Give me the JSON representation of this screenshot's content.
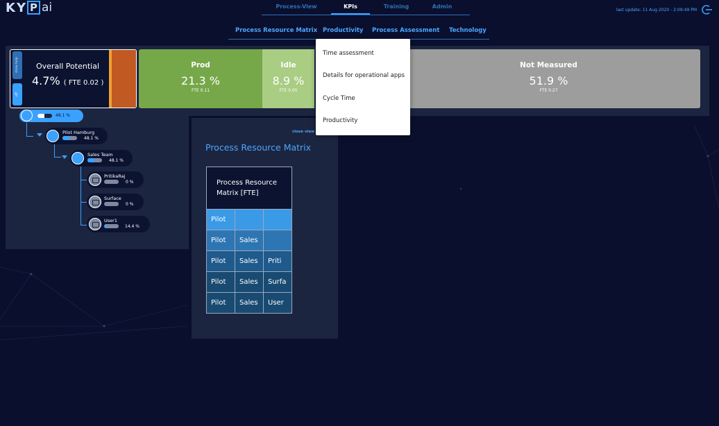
{
  "logo": {
    "k": "K",
    "y": "Y",
    "p": "P",
    "ai": "ai"
  },
  "top_nav": {
    "tabs": [
      {
        "label": "Process-View",
        "active": false
      },
      {
        "label": "KPIs",
        "active": true
      },
      {
        "label": "Training",
        "active": false
      },
      {
        "label": "Admin",
        "active": false
      }
    ]
  },
  "sub_nav": {
    "items": [
      "Process Resource Matrix",
      "Productivity",
      "Process Assessment",
      "Technology"
    ]
  },
  "last_update": "last update: 11 Aug 2020 - 2:09:49 PM",
  "icons": {
    "logout": "logout-icon",
    "close_view": "close-view-icon",
    "team": "team-icon",
    "computer": "computer-icon",
    "expand": "expand-arrow-icon"
  },
  "colors": {
    "background": "#0a0f2e",
    "accent": "#3aa1ff",
    "prod": "#76a84a",
    "idle": "#a9cd83",
    "not_measured": "#9d9d9d",
    "orange": "#c05a22"
  },
  "overall": {
    "show_help": "show help",
    "toggle_label": "off",
    "title": "Overall Potential",
    "value": "4.7%",
    "fte": "( FTE 0.02 )"
  },
  "kpis": {
    "prod": {
      "title": "Prod",
      "value": "21.3 %",
      "fte": "FTE 0.11"
    },
    "idle": {
      "title": "Idle",
      "value": "8.9 %",
      "fte": "FTE 0.05"
    },
    "not_measured": {
      "title": "Not Measured",
      "value": "51.9 %",
      "fte": "FTE 0.27"
    }
  },
  "dropdown": {
    "options": [
      "Time assessment",
      "Details for operational apps",
      "Cycle Time",
      "Productivity"
    ]
  },
  "tree": {
    "root": {
      "pct": "48.1 %",
      "fill": 0.481
    },
    "hamburg": {
      "label": "Pilot Hamburg",
      "pct": "48.1 %",
      "fill": 0.481
    },
    "sales_team": {
      "label": "Sales Team",
      "pct": "48.1 %",
      "fill": 0.481
    },
    "users": [
      {
        "label": "PritikaRaj",
        "pct": "0 %",
        "fill": 0.0
      },
      {
        "label": "Surface",
        "pct": "0 %",
        "fill": 0.0
      },
      {
        "label": "User1",
        "pct": "14.4 %",
        "fill": 0.144
      }
    ]
  },
  "prm": {
    "close_view": "close view",
    "title": "Process Resource Matrix",
    "header": "Process Resource Matrix [FTE]",
    "rows": [
      [
        "Pilot",
        "",
        ""
      ],
      [
        "Pilot",
        "Sales",
        ""
      ],
      [
        "Pilot",
        "Sales",
        "Priti"
      ],
      [
        "Pilot",
        "Sales",
        "Surfa"
      ],
      [
        "Pilot",
        "Sales",
        "User"
      ]
    ]
  }
}
